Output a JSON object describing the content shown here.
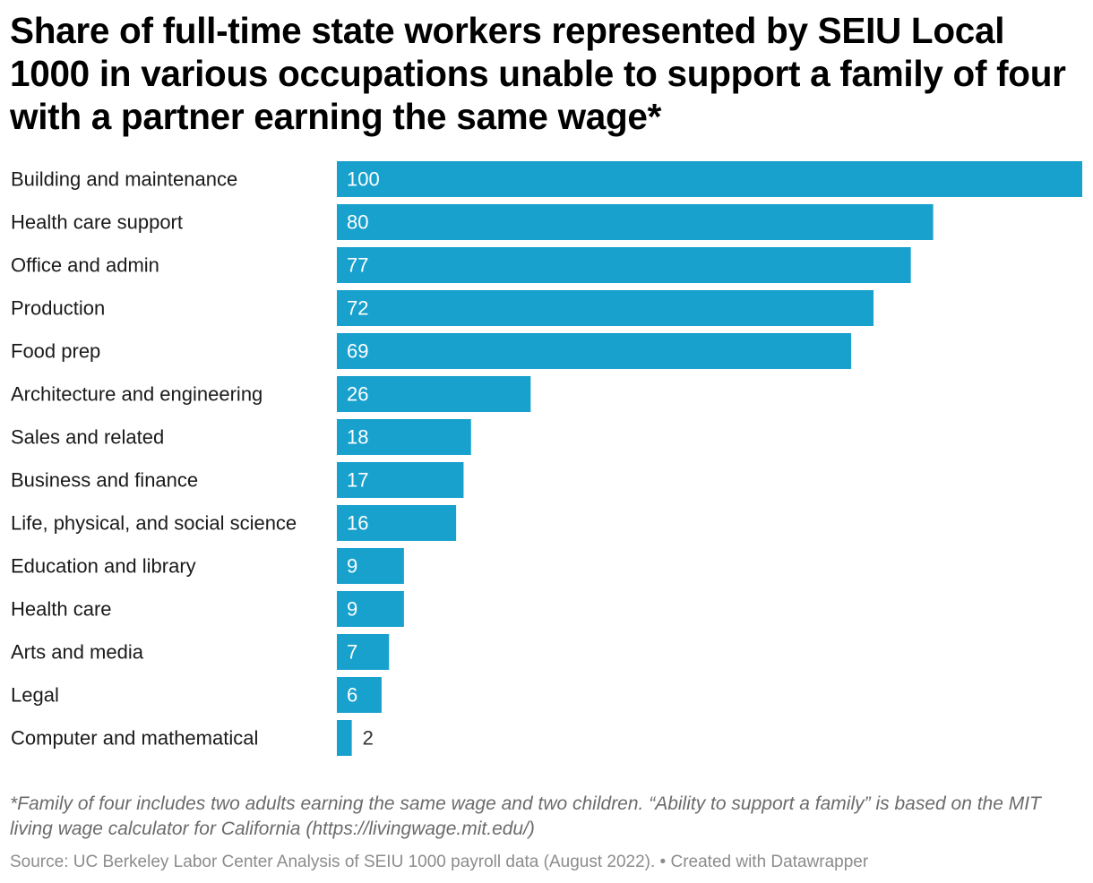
{
  "title": "Share of full-time state workers represented by SEIU Local 1000 in various occupations unable to support a family of four with a partner earning the same wage*",
  "footnote": "*Family of four includes two adults earning the same wage and two children. “Ability to support a family” is based on the MIT living wage calculator for California (https://livingwage.mit.edu/)",
  "source": "Source: UC Berkeley Labor Center Analysis of SEIU 1000 payroll data (August 2022). • Created with Datawrapper",
  "colors": {
    "bar": "#18a1cd",
    "label_inside": "#ffffff",
    "label_outside": "#333333"
  },
  "chart_data": {
    "type": "bar",
    "orientation": "horizontal",
    "categories": [
      "Building and maintenance",
      "Health care support",
      "Office and admin",
      "Production",
      "Food prep",
      "Architecture and engineering",
      "Sales and related",
      "Business and finance",
      "Life, physical, and social science",
      "Education and library",
      "Health care",
      "Arts and media",
      "Legal",
      "Computer and mathematical"
    ],
    "values": [
      100,
      80,
      77,
      72,
      69,
      26,
      18,
      17,
      16,
      9,
      9,
      7,
      6,
      2
    ],
    "xlim": [
      0,
      100
    ],
    "grid": false,
    "legend": "none",
    "data_labels": true
  }
}
